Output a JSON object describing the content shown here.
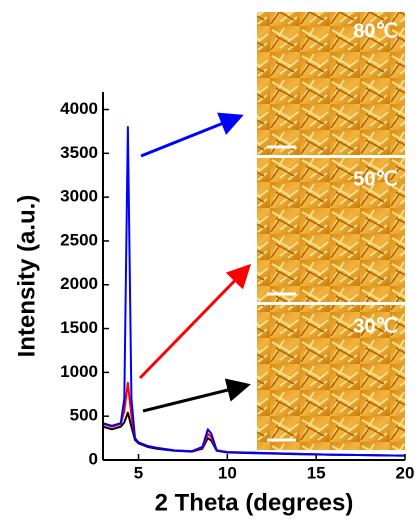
{
  "chart_data": {
    "type": "line",
    "xlabel": "2 Theta (degrees)",
    "ylabel": "Intensity (a.u.)",
    "x": [
      3,
      3.5,
      4,
      4.2,
      4.4,
      4.6,
      4.8,
      5,
      5.5,
      6,
      7,
      8,
      8.6,
      8.9,
      9.1,
      9.4,
      10,
      12,
      14,
      16,
      18,
      20
    ],
    "series": [
      {
        "color": "#000000",
        "values": [
          380,
          350,
          380,
          430,
          540,
          380,
          230,
          190,
          150,
          130,
          105,
          95,
          130,
          250,
          220,
          105,
          85,
          75,
          65,
          60,
          55,
          50
        ]
      },
      {
        "color": "#ff0000",
        "values": [
          410,
          380,
          410,
          560,
          880,
          500,
          250,
          200,
          160,
          140,
          110,
          100,
          140,
          300,
          260,
          110,
          90,
          80,
          70,
          60,
          55,
          50
        ]
      },
      {
        "color": "#0000ff",
        "values": [
          420,
          390,
          420,
          700,
          3800,
          700,
          250,
          200,
          160,
          140,
          110,
          100,
          150,
          350,
          300,
          110,
          90,
          80,
          70,
          60,
          55,
          50
        ]
      }
    ],
    "xlim": [
      3,
      20
    ],
    "xticks": [
      5,
      10,
      15,
      20
    ],
    "ylim": [
      0,
      4200
    ],
    "yticks": [
      0,
      500,
      1000,
      1500,
      2000,
      2500,
      3000,
      3500,
      4000
    ],
    "insets": [
      {
        "label": "80℃"
      },
      {
        "label": "50℃"
      },
      {
        "label": "30℃"
      }
    ]
  }
}
